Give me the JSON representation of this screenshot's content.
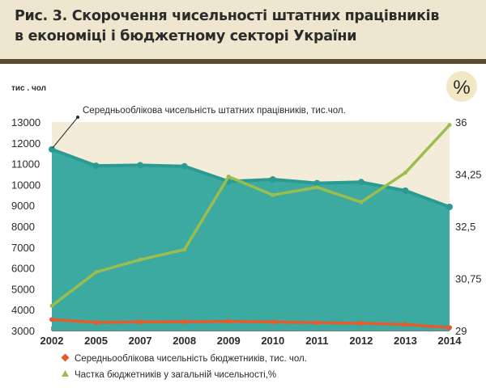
{
  "header": {
    "title_line1": "Рис. 3. Скорочення чисельності штатних працівників",
    "title_line2": "в економіці і бюджетному секторі України"
  },
  "chart_data": {
    "type": "line",
    "y_unit_left": "тис . чол",
    "y_unit_right": "%",
    "annotation": "Середньооблікова чисельність штатних працівників, тис.чол.",
    "categories": [
      "2002",
      "2005",
      "2007",
      "2008",
      "2009",
      "2010",
      "2011",
      "2012",
      "2013",
      "2014"
    ],
    "ylim_left": [
      3000,
      13000
    ],
    "yticks_left": [
      "3000",
      "4000",
      "5000",
      "6000",
      "7000",
      "8000",
      "9000",
      "10000",
      "11000",
      "12000",
      "13000"
    ],
    "ylim_right": [
      29,
      36
    ],
    "yticks_right": [
      {
        "value": 29,
        "label": "29"
      },
      {
        "value": 30.75,
        "label": "30,75"
      },
      {
        "value": 32.5,
        "label": "32,5"
      },
      {
        "value": 34.25,
        "label": "34,25"
      },
      {
        "value": 36,
        "label": "36"
      }
    ],
    "series": [
      {
        "name": "",
        "axis": "left",
        "kind": "area",
        "color": "#2a9a92",
        "fill": "#3daaa2",
        "values": [
          11690,
          10900,
          10930,
          10880,
          10150,
          10250,
          10070,
          10120,
          9710,
          8930
        ]
      },
      {
        "name": "Середньооблікова чисельність бюджетників, тис. чол.",
        "axis": "left",
        "kind": "line",
        "color": "#e85a2a",
        "values": [
          3530,
          3390,
          3410,
          3420,
          3440,
          3410,
          3380,
          3350,
          3290,
          3140
        ]
      },
      {
        "name": "Частка бюджетників у загальній чисельності,%",
        "axis": "right",
        "kind": "line",
        "color": "#9bbd4d",
        "values": [
          29.83,
          30.96,
          31.38,
          31.72,
          34.17,
          33.55,
          33.81,
          33.31,
          34.3,
          35.9
        ]
      }
    ],
    "legend_position": "bottom"
  }
}
